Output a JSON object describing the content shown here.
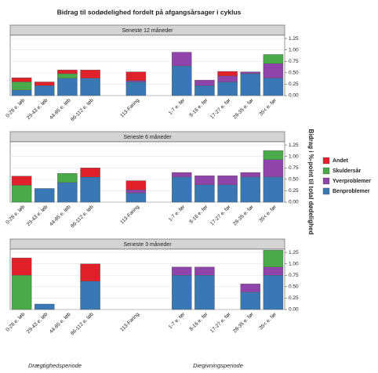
{
  "title": "Bidrag til sodødelighed fordelt på afgangsårsager i cyklus",
  "y_label": "Bidrag i %-point til total dødelighed",
  "group_labels": [
    "Drægtighedsperiode",
    "Diegivningsperiode"
  ],
  "chart_data": [
    {
      "type": "bar",
      "stacked": true,
      "title": "Seneste 12 måneder",
      "grid": true,
      "categories": [
        "0-28 e. løb",
        "29-43 e. løb",
        "44-85 e. løb",
        "86-112 e. løb",
        null,
        "113-Faring",
        null,
        "1-7 e. før",
        "8-16 e. før",
        "17-27 e. før",
        "28-35 e. før",
        "35< e. før"
      ],
      "ylim": [
        0,
        1.32
      ],
      "yticks": [
        {
          "value": 0,
          "label": "0.00"
        },
        {
          "value": 0.25,
          "label": "0.25"
        },
        {
          "value": 0.5,
          "label": "0.50"
        },
        {
          "value": 0.75,
          "label": "0.75"
        },
        {
          "value": 1,
          "label": "1.00"
        },
        {
          "value": 1.25,
          "label": "1.25"
        }
      ],
      "series": [
        {
          "name": "Benproblemer",
          "color": "#3a78b5",
          "values": [
            0.12,
            0.22,
            0.38,
            0.38,
            null,
            0.3,
            null,
            0.65,
            0.22,
            0.3,
            0.48,
            0.38
          ]
        },
        {
          "name": "Yverproblemer",
          "color": "#8e44a8",
          "values": [
            0,
            0,
            0,
            0,
            null,
            0.03,
            null,
            0.3,
            0.12,
            0.13,
            0.04,
            0.32
          ]
        },
        {
          "name": "Skuldersår",
          "color": "#4aaa4a",
          "values": [
            0.18,
            0,
            0.1,
            0,
            null,
            0,
            null,
            0,
            0,
            0,
            0,
            0.2
          ]
        },
        {
          "name": "Andet",
          "color": "#e0202a",
          "values": [
            0.09,
            0.08,
            0.08,
            0.18,
            null,
            0.19,
            null,
            0,
            0,
            0.1,
            0,
            0
          ]
        }
      ]
    },
    {
      "type": "bar",
      "stacked": true,
      "title": "Seneste 6 måneder",
      "grid": true,
      "categories": [
        "0-28 e. løb",
        "29-43 e. løb",
        "44-85 e. løb",
        "86-112 e. løb",
        null,
        "113-Faring",
        null,
        "1-7 e. før",
        "8-16 e. før",
        "17-27 e. før",
        "28-35 e. før",
        "35< e. før"
      ],
      "ylim": [
        0,
        1.32
      ],
      "yticks": [
        {
          "value": 0,
          "label": "0.00"
        },
        {
          "value": 0.25,
          "label": "0.25"
        },
        {
          "value": 0.5,
          "label": "0.50"
        },
        {
          "value": 0.75,
          "label": "0.75"
        },
        {
          "value": 1,
          "label": "1.00"
        },
        {
          "value": 1.25,
          "label": "1.25"
        }
      ],
      "series": [
        {
          "name": "Benproblemer",
          "color": "#3a78b5",
          "values": [
            0,
            0.3,
            0.43,
            0.55,
            null,
            0.2,
            null,
            0.55,
            0.38,
            0.38,
            0.55,
            0.55
          ]
        },
        {
          "name": "Yverproblemer",
          "color": "#8e44a8",
          "values": [
            0,
            0,
            0,
            0,
            null,
            0.07,
            null,
            0.1,
            0.2,
            0.2,
            0.1,
            0.38
          ]
        },
        {
          "name": "Skuldersår",
          "color": "#4aaa4a",
          "values": [
            0.37,
            0,
            0.2,
            0,
            null,
            0,
            null,
            0,
            0,
            0,
            0,
            0.2
          ]
        },
        {
          "name": "Andet",
          "color": "#e0202a",
          "values": [
            0.2,
            0,
            0,
            0.2,
            null,
            0.2,
            null,
            0,
            0,
            0,
            0,
            0
          ]
        }
      ]
    },
    {
      "type": "bar",
      "stacked": true,
      "title": "Seneste 3 måneder",
      "grid": true,
      "categories": [
        "0-28 e. løb",
        "29-43 e. løb",
        "44-85 e. løb",
        "86-112 e. løb",
        null,
        "113-Faring",
        null,
        "1-7 e. før",
        "8-16 e. før",
        "17-27 e. før",
        "28-35 e. før",
        "35< e. før"
      ],
      "ylim": [
        0,
        1.32
      ],
      "yticks": [
        {
          "value": 0,
          "label": "0.00"
        },
        {
          "value": 0.25,
          "label": "0.25"
        },
        {
          "value": 0.5,
          "label": "0.50"
        },
        {
          "value": 0.75,
          "label": "0.75"
        },
        {
          "value": 1,
          "label": "1.00"
        },
        {
          "value": 1.25,
          "label": "1.25"
        }
      ],
      "series": [
        {
          "name": "Benproblemer",
          "color": "#3a78b5",
          "values": [
            0,
            0.12,
            0,
            0.62,
            null,
            0,
            null,
            0.75,
            0.75,
            0,
            0.38,
            0.75
          ]
        },
        {
          "name": "Yverproblemer",
          "color": "#8e44a8",
          "values": [
            0,
            0,
            0,
            0,
            null,
            0,
            null,
            0.18,
            0.18,
            0,
            0.18,
            0.18
          ]
        },
        {
          "name": "Skuldersår",
          "color": "#4aaa4a",
          "values": [
            0.75,
            0,
            0,
            0,
            null,
            0,
            null,
            0,
            0,
            0,
            0,
            0.37
          ]
        },
        {
          "name": "Andet",
          "color": "#e0202a",
          "values": [
            0.38,
            0,
            0,
            0.38,
            null,
            0,
            null,
            0,
            0,
            0,
            0,
            0
          ]
        }
      ]
    }
  ]
}
